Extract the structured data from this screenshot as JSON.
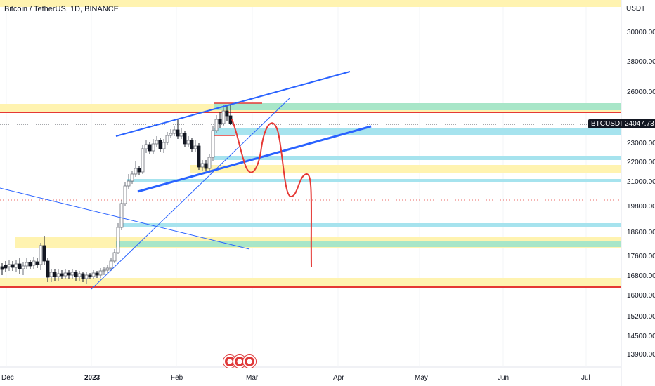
{
  "header": {
    "symbol_title": "Bitcoin / TetherUS, 1D, BINANCE",
    "currency": "USDT"
  },
  "price_scale": {
    "labels": [
      "30000.00",
      "28000.00",
      "26000.00",
      "23000.00",
      "22000.00",
      "21000.00",
      "19800.00",
      "18600.00",
      "17600.00",
      "16800.00",
      "16000.00",
      "15200.00",
      "14500.00",
      "13900.00"
    ],
    "symbol_tag": "BTCUSDT",
    "last_price": "24047.73"
  },
  "time_scale": {
    "labels": [
      "Dec",
      "2023",
      "Feb",
      "Mar",
      "Apr",
      "May",
      "Jun",
      "Jul"
    ]
  },
  "colors": {
    "up": "#26a69a",
    "down": "#131722",
    "candle_body": "#6b6f78",
    "zone_yellow": "#fff3b0",
    "zone_cyan": "#a6e3ee",
    "zone_green": "#a8e6c8",
    "trendline_blue": "#2962ff",
    "level_red": "#e53935",
    "projection_red": "#e53935"
  },
  "footer": {
    "event_icons": [
      "us-flag-icon",
      "us-flag-icon",
      "us-flag-icon"
    ]
  }
}
